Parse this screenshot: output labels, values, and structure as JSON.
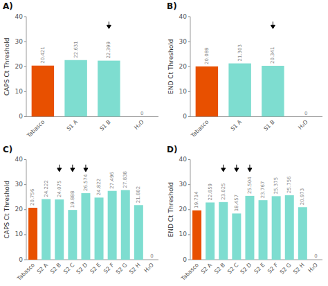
{
  "chart_data": [
    {
      "type": "bar",
      "title": "A)",
      "ylabel": "CAPS Ct Threshold",
      "categories": [
        "Tabasco",
        "S1 A",
        "S1 B",
        "H₂O"
      ],
      "values": [
        20.421,
        22.631,
        22.399,
        0
      ],
      "colors": [
        "#E85000",
        "#7EDDD0",
        "#7EDDD0",
        "#7EDDD0"
      ],
      "ylim": [
        0,
        40
      ],
      "yticks": [
        0,
        10,
        20,
        30,
        40
      ],
      "grid": false,
      "data_labels": true,
      "arrows": [
        {
          "category": "S1 B",
          "from": 38,
          "to": 35.2
        }
      ]
    },
    {
      "type": "bar",
      "title": "B)",
      "ylabel": "END Ct Threshold",
      "categories": [
        "Tabasco",
        "S1 A",
        "S1 B",
        "H₂O"
      ],
      "values": [
        20.089,
        21.303,
        20.341,
        0
      ],
      "colors": [
        "#E85000",
        "#7EDDD0",
        "#7EDDD0",
        "#7EDDD0"
      ],
      "ylim": [
        0,
        40
      ],
      "yticks": [
        0,
        10,
        20,
        30,
        40
      ],
      "grid": false,
      "data_labels": true,
      "arrows": [
        {
          "category": "S1 B",
          "from": 38,
          "to": 35.2
        }
      ]
    },
    {
      "type": "bar",
      "title": "C)",
      "ylabel": "CAPS Ct Threshold",
      "categories": [
        "Tabasco",
        "S2 A",
        "S2 B",
        "S2 C",
        "S2 D",
        "S2 E",
        "S2 F",
        "S2 G",
        "S2 H",
        "H₂O"
      ],
      "values": [
        20.756,
        24.222,
        24.075,
        19.888,
        26.574,
        24.822,
        27.496,
        27.838,
        21.802,
        0
      ],
      "colors": [
        "#E85000",
        "#7EDDD0",
        "#7EDDD0",
        "#7EDDD0",
        "#7EDDD0",
        "#7EDDD0",
        "#7EDDD0",
        "#7EDDD0",
        "#7EDDD0",
        "#7EDDD0"
      ],
      "ylim": [
        0,
        40
      ],
      "yticks": [
        0,
        10,
        20,
        30,
        40
      ],
      "grid": false,
      "data_labels": true,
      "arrows": [
        {
          "category": "S2 B",
          "from": 38,
          "to": 35.2
        },
        {
          "category": "S2 C",
          "from": 38,
          "to": 35.2
        },
        {
          "category": "S2 D",
          "from": 38,
          "to": 35.2
        }
      ]
    },
    {
      "type": "bar",
      "title": "D)",
      "ylabel": "END Ct Threshold",
      "categories": [
        "Tabasco",
        "S2 A",
        "S2 B",
        "S2 C",
        "S2 D",
        "S2 E",
        "S2 F",
        "S2 G",
        "S2 H",
        "H₂O"
      ],
      "values": [
        19.714,
        22.859,
        23.025,
        18.457,
        25.504,
        23.767,
        25.375,
        25.756,
        20.973,
        0
      ],
      "colors": [
        "#E85000",
        "#7EDDD0",
        "#7EDDD0",
        "#7EDDD0",
        "#7EDDD0",
        "#7EDDD0",
        "#7EDDD0",
        "#7EDDD0",
        "#7EDDD0",
        "#7EDDD0"
      ],
      "ylim": [
        0,
        40
      ],
      "yticks": [
        0,
        10,
        20,
        30,
        40
      ],
      "grid": false,
      "data_labels": true,
      "arrows": [
        {
          "category": "S2 B",
          "from": 38,
          "to": 35.2
        },
        {
          "category": "S2 C",
          "from": 38,
          "to": 35.2
        },
        {
          "category": "S2 D",
          "from": 38,
          "to": 35.2
        }
      ]
    }
  ]
}
